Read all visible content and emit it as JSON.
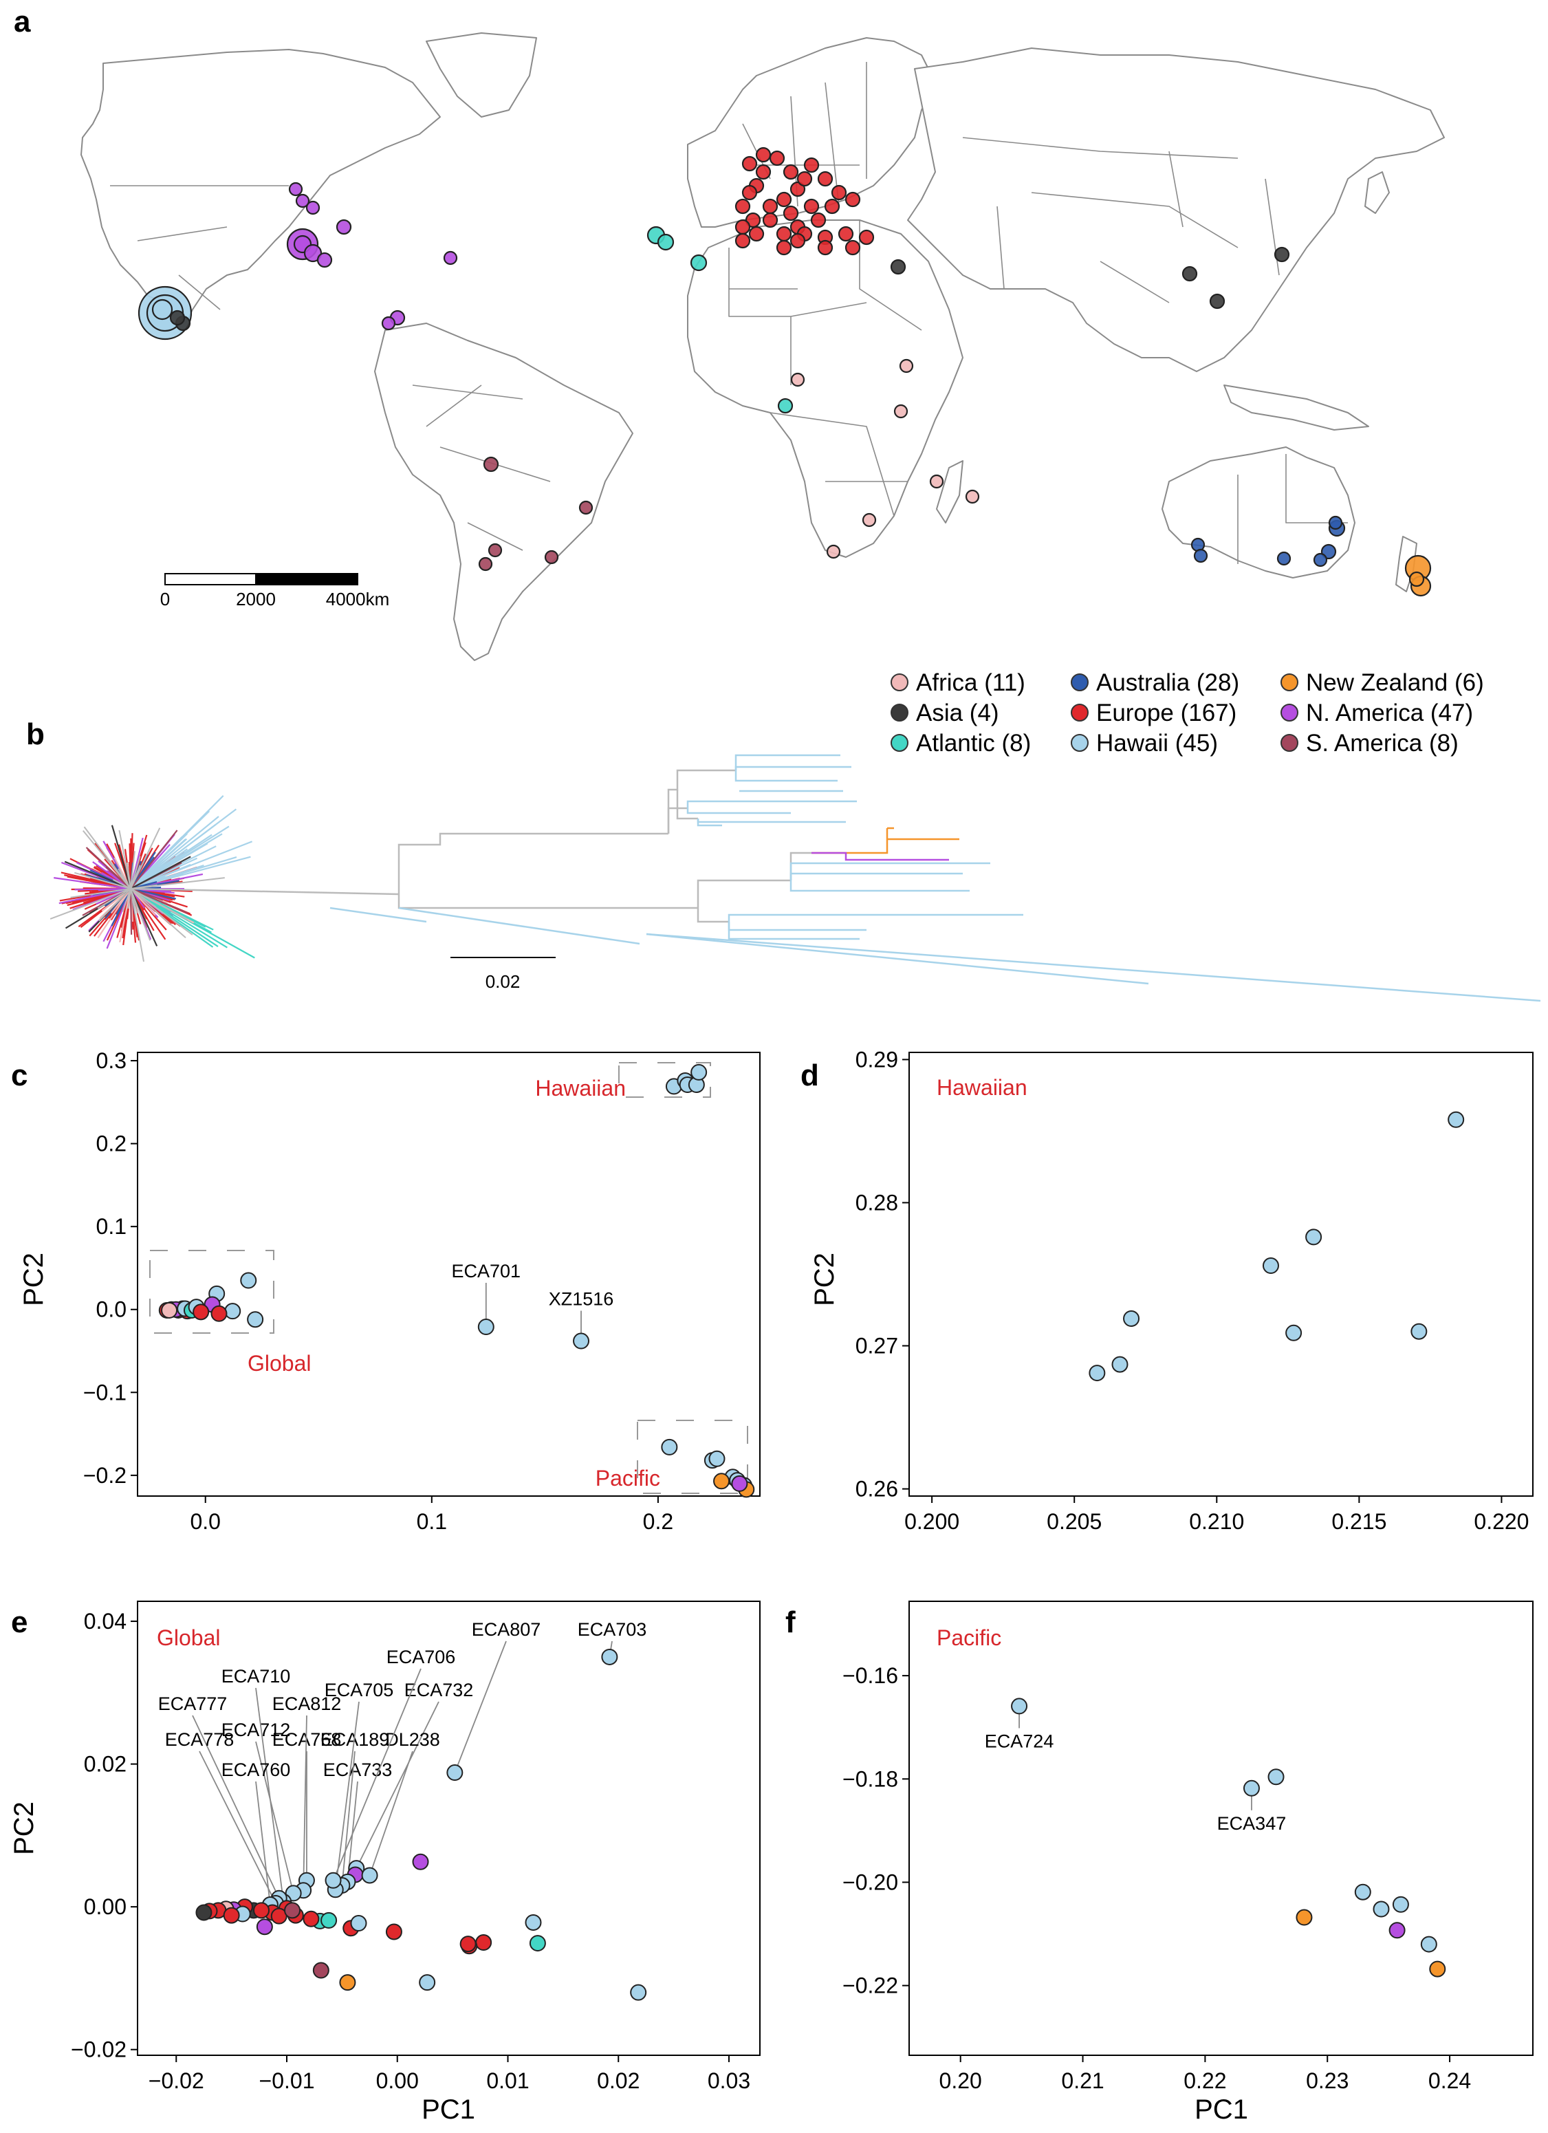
{
  "panel_letters": [
    "a",
    "b",
    "c",
    "d",
    "e",
    "f"
  ],
  "colors": {
    "Africa": "#f1b9b9",
    "Asia": "#3a3a3a",
    "Atlantic": "#43d6c5",
    "Australia": "#2f5cae",
    "Europe": "#e0282c",
    "Hawaii": "#a7d3ea",
    "New Zealand": "#f5952b",
    "N. America": "#b54ee0",
    "S. America": "#a3465d",
    "red_label": "#d7262b",
    "map_border": "#8a8a8a",
    "tree_gray": "#bbbbbb"
  },
  "legend": [
    {
      "name": "Africa (11)",
      "key": "Africa"
    },
    {
      "name": "Asia (4)",
      "key": "Asia"
    },
    {
      "name": "Atlantic (8)",
      "key": "Atlantic"
    },
    {
      "name": "Australia (28)",
      "key": "Australia"
    },
    {
      "name": "Europe (167)",
      "key": "Europe"
    },
    {
      "name": "Hawaii (45)",
      "key": "Hawaii"
    },
    {
      "name": "New Zealand (6)",
      "key": "New Zealand"
    },
    {
      "name": "N. America (47)",
      "key": "N. America"
    },
    {
      "name": "S. America (8)",
      "key": "S. America"
    }
  ],
  "map_scalebar": {
    "labels": [
      "0",
      "2000",
      "4000km"
    ]
  },
  "tree_scale": "0.02",
  "chart_data": [
    {
      "panel": "c",
      "type": "scatter",
      "xlabel": "",
      "ylabel": "PC2",
      "xlim": [
        -0.03,
        0.245
      ],
      "ylim": [
        -0.225,
        0.31
      ],
      "xticks": [
        0.0,
        0.1,
        0.2
      ],
      "xtick_labels": [
        "0.0",
        "0.1",
        "0.2"
      ],
      "yticks": [
        -0.2,
        -0.1,
        0.0,
        0.1,
        0.2,
        0.3
      ],
      "ytick_labels": [
        "−0.2",
        "−0.1",
        "0.0",
        "0.1",
        "0.2",
        "0.3"
      ],
      "region_labels": [
        "Hawaiian",
        "Global",
        "Pacific"
      ],
      "points": [
        {
          "x": 0.207,
          "y": 0.269,
          "g": "Hawaii"
        },
        {
          "x": 0.212,
          "y": 0.276,
          "g": "Hawaii"
        },
        {
          "x": 0.213,
          "y": 0.271,
          "g": "Hawaii"
        },
        {
          "x": 0.217,
          "y": 0.271,
          "g": "Hawaii"
        },
        {
          "x": 0.218,
          "y": 0.286,
          "g": "Hawaii"
        },
        {
          "x": 0.124,
          "y": -0.021,
          "g": "Hawaii",
          "label": "ECA701"
        },
        {
          "x": 0.166,
          "y": -0.038,
          "g": "Hawaii",
          "label": "XZ1516"
        },
        {
          "x": 0.019,
          "y": 0.035,
          "g": "Hawaii"
        },
        {
          "x": 0.022,
          "y": -0.012,
          "g": "Hawaii"
        },
        {
          "x": 0.005,
          "y": 0.019,
          "g": "Hawaii"
        },
        {
          "x": 0.205,
          "y": -0.166,
          "g": "Hawaii"
        },
        {
          "x": 0.224,
          "y": -0.182,
          "g": "Hawaii"
        },
        {
          "x": 0.226,
          "y": -0.18,
          "g": "Hawaii"
        },
        {
          "x": 0.233,
          "y": -0.202,
          "g": "Hawaii"
        },
        {
          "x": 0.235,
          "y": -0.206,
          "g": "Hawaii"
        },
        {
          "x": 0.238,
          "y": -0.212,
          "g": "Hawaii"
        },
        {
          "x": 0.228,
          "y": -0.207,
          "g": "New Zealand"
        },
        {
          "x": 0.239,
          "y": -0.217,
          "g": "New Zealand"
        },
        {
          "x": 0.236,
          "y": -0.21,
          "g": "N. America"
        },
        {
          "x": -0.017,
          "y": -0.001,
          "g": "Europe"
        },
        {
          "x": -0.015,
          "y": 0.0,
          "g": "Europe"
        },
        {
          "x": -0.012,
          "y": -0.001,
          "g": "Europe"
        },
        {
          "x": -0.01,
          "y": 0.001,
          "g": "Europe"
        },
        {
          "x": -0.008,
          "y": -0.002,
          "g": "Europe"
        },
        {
          "x": -0.005,
          "y": 0.0,
          "g": "Europe"
        },
        {
          "x": -0.013,
          "y": 0.0,
          "g": "N. America"
        },
        {
          "x": -0.009,
          "y": 0.001,
          "g": "Hawaii"
        },
        {
          "x": -0.006,
          "y": -0.001,
          "g": "Atlantic"
        },
        {
          "x": -0.016,
          "y": -0.001,
          "g": "Africa"
        },
        {
          "x": -0.004,
          "y": 0.003,
          "g": "Hawaii"
        },
        {
          "x": 0.003,
          "y": 0.006,
          "g": "N. America"
        },
        {
          "x": -0.002,
          "y": -0.003,
          "g": "Europe"
        },
        {
          "x": 0.012,
          "y": -0.002,
          "g": "Hawaii"
        },
        {
          "x": 0.006,
          "y": -0.005,
          "g": "Europe"
        }
      ]
    },
    {
      "panel": "d",
      "type": "scatter",
      "xlabel": "",
      "ylabel": "PC2",
      "xlim": [
        0.1992,
        0.2211
      ],
      "ylim": [
        0.2595,
        0.2905
      ],
      "xticks": [
        0.2,
        0.205,
        0.21,
        0.215,
        0.22
      ],
      "xtick_labels": [
        "0.200",
        "0.205",
        "0.210",
        "0.215",
        "0.220"
      ],
      "yticks": [
        0.26,
        0.27,
        0.28,
        0.29
      ],
      "ytick_labels": [
        "0.26",
        "0.27",
        "0.28",
        "0.29"
      ],
      "region_labels": [
        "Hawaiian"
      ],
      "points": [
        {
          "x": 0.2058,
          "y": 0.2681,
          "g": "Hawaii"
        },
        {
          "x": 0.2066,
          "y": 0.2687,
          "g": "Hawaii"
        },
        {
          "x": 0.207,
          "y": 0.2719,
          "g": "Hawaii"
        },
        {
          "x": 0.2119,
          "y": 0.2756,
          "g": "Hawaii"
        },
        {
          "x": 0.2127,
          "y": 0.2709,
          "g": "Hawaii"
        },
        {
          "x": 0.2134,
          "y": 0.2776,
          "g": "Hawaii"
        },
        {
          "x": 0.2171,
          "y": 0.271,
          "g": "Hawaii"
        },
        {
          "x": 0.2184,
          "y": 0.2858,
          "g": "Hawaii"
        }
      ]
    },
    {
      "panel": "e",
      "type": "scatter",
      "xlabel": "PC1",
      "ylabel": "PC2",
      "xlim": [
        -0.0235,
        0.0328
      ],
      "ylim": [
        -0.0208,
        0.0428
      ],
      "xticks": [
        -0.02,
        -0.01,
        0.0,
        0.01,
        0.02,
        0.03
      ],
      "xtick_labels": [
        "−0.02",
        "−0.01",
        "0.00",
        "0.01",
        "0.02",
        "0.03"
      ],
      "yticks": [
        -0.02,
        0.0,
        0.02,
        0.04
      ],
      "ytick_labels": [
        "−0.02",
        "0.00",
        "0.02",
        "0.04"
      ],
      "region_labels": [
        "Global"
      ],
      "points": [
        {
          "x": 0.0192,
          "y": 0.035,
          "g": "Hawaii",
          "label": "ECA703"
        },
        {
          "x": 0.0052,
          "y": 0.0188,
          "g": "Hawaii",
          "label": "ECA807"
        },
        {
          "x": 0.0021,
          "y": 0.0063,
          "g": "N. America"
        },
        {
          "x": -0.0037,
          "y": 0.0054,
          "g": "Hawaii",
          "label": "ECA732"
        },
        {
          "x": -0.0038,
          "y": 0.0045,
          "g": "N. America"
        },
        {
          "x": -0.0025,
          "y": 0.0044,
          "g": "Hawaii",
          "label": "DL238"
        },
        {
          "x": -0.0045,
          "y": 0.0035,
          "g": "Hawaii",
          "label": "ECA733"
        },
        {
          "x": -0.005,
          "y": 0.003,
          "g": "Hawaii",
          "label": "ECA189"
        },
        {
          "x": -0.0056,
          "y": 0.0024,
          "g": "Hawaii",
          "label": "ECA705"
        },
        {
          "x": -0.0058,
          "y": 0.0037,
          "g": "Hawaii",
          "label": "ECA706"
        },
        {
          "x": -0.0082,
          "y": 0.0037,
          "g": "Hawaii",
          "label": "ECA768"
        },
        {
          "x": -0.0085,
          "y": 0.0023,
          "g": "Hawaii",
          "label": "ECA812"
        },
        {
          "x": -0.0094,
          "y": 0.0019,
          "g": "Hawaii",
          "label": "ECA712"
        },
        {
          "x": -0.0103,
          "y": 0.0007,
          "g": "Hawaii",
          "label": "ECA710"
        },
        {
          "x": -0.0107,
          "y": 0.0012,
          "g": "Hawaii",
          "label": "ECA777"
        },
        {
          "x": -0.011,
          "y": 0.0005,
          "g": "Hawaii",
          "label": "ECA778"
        },
        {
          "x": -0.0115,
          "y": 0.0003,
          "g": "Hawaii",
          "label": "ECA760"
        },
        {
          "x": 0.0123,
          "y": -0.0022,
          "g": "Hawaii"
        },
        {
          "x": 0.0127,
          "y": -0.0051,
          "g": "Atlantic"
        },
        {
          "x": 0.0218,
          "y": -0.012,
          "g": "Hawaii"
        },
        {
          "x": 0.0027,
          "y": -0.0106,
          "g": "Hawaii"
        },
        {
          "x": -0.0045,
          "y": -0.0106,
          "g": "New Zealand"
        },
        {
          "x": -0.0069,
          "y": -0.0089,
          "g": "S. America"
        },
        {
          "x": 0.0078,
          "y": -0.005,
          "g": "Europe"
        },
        {
          "x": 0.0065,
          "y": -0.0055,
          "g": "Europe"
        },
        {
          "x": 0.0064,
          "y": -0.0052,
          "g": "Europe"
        },
        {
          "x": -0.0003,
          "y": -0.0035,
          "g": "Europe"
        },
        {
          "x": -0.0042,
          "y": -0.003,
          "g": "Europe"
        },
        {
          "x": -0.0035,
          "y": -0.0023,
          "g": "Hawaii"
        },
        {
          "x": -0.007,
          "y": -0.002,
          "g": "Atlantic"
        },
        {
          "x": -0.0062,
          "y": -0.0019,
          "g": "Atlantic"
        },
        {
          "x": -0.0078,
          "y": -0.0017,
          "g": "Europe"
        },
        {
          "x": -0.0092,
          "y": -0.0012,
          "g": "Europe"
        },
        {
          "x": -0.012,
          "y": -0.0028,
          "g": "N. America"
        },
        {
          "x": -0.013,
          "y": -0.0005,
          "g": "Asia"
        },
        {
          "x": -0.01,
          "y": -0.0002,
          "g": "Europe"
        },
        {
          "x": -0.0113,
          "y": -0.0008,
          "g": "Europe"
        },
        {
          "x": -0.0123,
          "y": -0.0005,
          "g": "Europe"
        },
        {
          "x": -0.0138,
          "y": 0.0,
          "g": "Europe"
        },
        {
          "x": -0.0148,
          "y": -0.0004,
          "g": "N. America"
        },
        {
          "x": -0.0155,
          "y": -0.0003,
          "g": "Africa"
        },
        {
          "x": -0.0162,
          "y": -0.0005,
          "g": "Europe"
        },
        {
          "x": -0.017,
          "y": -0.0006,
          "g": "Europe"
        },
        {
          "x": -0.0175,
          "y": -0.0008,
          "g": "Asia"
        },
        {
          "x": -0.014,
          "y": -0.001,
          "g": "Hawaii"
        },
        {
          "x": -0.0107,
          "y": -0.0013,
          "g": "Europe"
        },
        {
          "x": -0.0095,
          "y": -0.0005,
          "g": "S. America"
        },
        {
          "x": -0.015,
          "y": -0.0012,
          "g": "Europe"
        }
      ]
    },
    {
      "panel": "f",
      "type": "scatter",
      "xlabel": "PC1",
      "ylabel": "",
      "xlim": [
        0.1958,
        0.2468
      ],
      "ylim": [
        -0.2335,
        -0.1456
      ],
      "xticks": [
        0.2,
        0.21,
        0.22,
        0.23,
        0.24
      ],
      "xtick_labels": [
        "0.20",
        "0.21",
        "0.22",
        "0.23",
        "0.24"
      ],
      "yticks": [
        -0.16,
        -0.18,
        -0.2,
        -0.22
      ],
      "ytick_labels": [
        "−0.16",
        "−0.18",
        "−0.20",
        "−0.22"
      ],
      "region_labels": [
        "Pacific"
      ],
      "points": [
        {
          "x": 0.2048,
          "y": -0.1659,
          "g": "Hawaii",
          "label": "ECA724"
        },
        {
          "x": 0.2238,
          "y": -0.1818,
          "g": "Hawaii",
          "label": "ECA347"
        },
        {
          "x": 0.2258,
          "y": -0.1796,
          "g": "Hawaii"
        },
        {
          "x": 0.2329,
          "y": -0.2019,
          "g": "Hawaii"
        },
        {
          "x": 0.2344,
          "y": -0.2052,
          "g": "Hawaii"
        },
        {
          "x": 0.236,
          "y": -0.2043,
          "g": "Hawaii"
        },
        {
          "x": 0.2383,
          "y": -0.212,
          "g": "Hawaii"
        },
        {
          "x": 0.2281,
          "y": -0.2068,
          "g": "New Zealand"
        },
        {
          "x": 0.239,
          "y": -0.2168,
          "g": "New Zealand"
        },
        {
          "x": 0.2357,
          "y": -0.2093,
          "g": "N. America"
        }
      ]
    }
  ]
}
